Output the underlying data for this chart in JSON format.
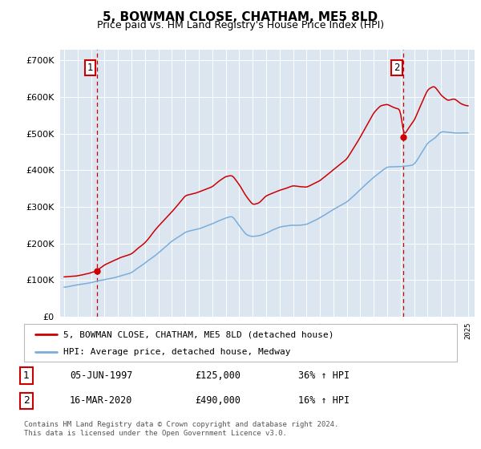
{
  "title": "5, BOWMAN CLOSE, CHATHAM, ME5 8LD",
  "subtitle": "Price paid vs. HM Land Registry's House Price Index (HPI)",
  "ylim": [
    0,
    730000
  ],
  "xlim_start": 1994.7,
  "xlim_end": 2025.5,
  "sale1_year": 1997.42,
  "sale1_price": 125000,
  "sale2_year": 2020.2,
  "sale2_price": 490000,
  "legend_line1": "5, BOWMAN CLOSE, CHATHAM, ME5 8LD (detached house)",
  "legend_line2": "HPI: Average price, detached house, Medway",
  "annotation1_label": "1",
  "annotation1_date": "05-JUN-1997",
  "annotation1_price": "£125,000",
  "annotation1_hpi": "36% ↑ HPI",
  "annotation2_label": "2",
  "annotation2_date": "16-MAR-2020",
  "annotation2_price": "£490,000",
  "annotation2_hpi": "16% ↑ HPI",
  "footer": "Contains HM Land Registry data © Crown copyright and database right 2024.\nThis data is licensed under the Open Government Licence v3.0.",
  "bg_color": "#dce6f1",
  "line_color_red": "#cc0000",
  "line_color_blue": "#7aadda",
  "vline_color": "#cc0000"
}
